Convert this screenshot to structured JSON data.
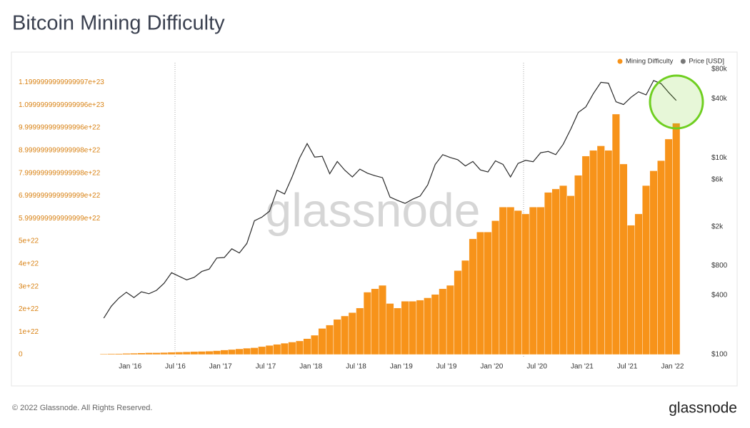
{
  "chart_data": {
    "type": "bar",
    "title": "Bitcoin Mining Difficulty",
    "watermark": "glassnode",
    "x": [
      "2015-09",
      "2015-10",
      "2015-11",
      "2015-12",
      "2016-01",
      "2016-02",
      "2016-03",
      "2016-04",
      "2016-05",
      "2016-06",
      "2016-07",
      "2016-08",
      "2016-09",
      "2016-10",
      "2016-11",
      "2016-12",
      "2017-01",
      "2017-02",
      "2017-03",
      "2017-04",
      "2017-05",
      "2017-06",
      "2017-07",
      "2017-08",
      "2017-09",
      "2017-10",
      "2017-11",
      "2017-12",
      "2018-01",
      "2018-02",
      "2018-03",
      "2018-04",
      "2018-05",
      "2018-06",
      "2018-07",
      "2018-08",
      "2018-09",
      "2018-10",
      "2018-11",
      "2018-12",
      "2019-01",
      "2019-02",
      "2019-03",
      "2019-04",
      "2019-05",
      "2019-06",
      "2019-07",
      "2019-08",
      "2019-09",
      "2019-10",
      "2019-11",
      "2019-12",
      "2020-01",
      "2020-02",
      "2020-03",
      "2020-04",
      "2020-05",
      "2020-06",
      "2020-07",
      "2020-08",
      "2020-09",
      "2020-10",
      "2020-11",
      "2020-12",
      "2021-01",
      "2021-02",
      "2021-03",
      "2021-04",
      "2021-05",
      "2021-06",
      "2021-07",
      "2021-08",
      "2021-09",
      "2021-10",
      "2021-11",
      "2021-12",
      "2022-01"
    ],
    "series": [
      {
        "name": "Mining Difficulty",
        "type": "bar",
        "color": "#f7931a",
        "values": [
          3e+20,
          3.5e+20,
          4e+20,
          5e+20,
          6e+20,
          7e+20,
          8e+20,
          8e+20,
          9e+20,
          1e+21,
          1.1e+21,
          1.2e+21,
          1.3e+21,
          1.4e+21,
          1.5e+21,
          1.7e+21,
          2e+21,
          2.2e+21,
          2.5e+21,
          2.8e+21,
          3e+21,
          3.5e+21,
          4e+21,
          4.5e+21,
          5e+21,
          5.5e+21,
          6e+21,
          7e+21,
          8.5e+21,
          1.15e+22,
          1.3e+22,
          1.55e+22,
          1.7e+22,
          1.85e+22,
          2.05e+22,
          2.75e+22,
          2.9e+22,
          3.05e+22,
          2.25e+22,
          2.05e+22,
          2.35e+22,
          2.35e+22,
          2.4e+22,
          2.5e+22,
          2.65e+22,
          2.9e+22,
          3.05e+22,
          3.7e+22,
          4.15e+22,
          5.1e+22,
          5.4e+22,
          5.4e+22,
          5.9e+22,
          6.5e+22,
          6.5e+22,
          6.35e+22,
          6.2e+22,
          6.5e+22,
          6.5e+22,
          7.15e+22,
          7.3e+22,
          7.45e+22,
          7e+22,
          7.9e+22,
          8.75e+22,
          9e+22,
          9.2e+22,
          9e+22,
          1.06e+23,
          8.4e+22,
          5.7e+22,
          6.2e+22,
          7.45e+22,
          8.1e+22,
          8.55e+22,
          9.5e+22,
          1.02e+23
        ]
      },
      {
        "name": "Price [USD]",
        "type": "line",
        "color": "#2b2b2b",
        "axis": "y2",
        "values": [
          235,
          310,
          375,
          430,
          380,
          435,
          415,
          450,
          530,
          680,
          625,
          575,
          610,
          700,
          740,
          960,
          970,
          1190,
          1080,
          1350,
          2300,
          2500,
          2870,
          4700,
          4300,
          6400,
          10000,
          14000,
          10200,
          10400,
          6900,
          9200,
          7500,
          6400,
          7700,
          7000,
          6600,
          6300,
          4000,
          3700,
          3450,
          3800,
          4100,
          5300,
          8600,
          10800,
          10100,
          9600,
          8300,
          9200,
          7550,
          7200,
          9350,
          8600,
          6400,
          8800,
          9450,
          9150,
          11300,
          11650,
          10800,
          13800,
          19700,
          29000,
          33100,
          45200,
          58800,
          57700,
          37300,
          35000,
          41500,
          47100,
          43800,
          61300,
          57000,
          46300,
          38500
        ]
      }
    ],
    "xlim": [
      "2015-09",
      "2022-02"
    ],
    "xticks": [
      {
        "value": "2016-01",
        "label": "Jan '16"
      },
      {
        "value": "2016-07",
        "label": "Jul '16"
      },
      {
        "value": "2017-01",
        "label": "Jan '17"
      },
      {
        "value": "2017-07",
        "label": "Jul '17"
      },
      {
        "value": "2018-01",
        "label": "Jan '18"
      },
      {
        "value": "2018-07",
        "label": "Jul '18"
      },
      {
        "value": "2019-01",
        "label": "Jan '19"
      },
      {
        "value": "2019-07",
        "label": "Jul '19"
      },
      {
        "value": "2020-01",
        "label": "Jan '20"
      },
      {
        "value": "2020-07",
        "label": "Jul '20"
      },
      {
        "value": "2021-01",
        "label": "Jan '21"
      },
      {
        "value": "2021-07",
        "label": "Jul '21"
      },
      {
        "value": "2022-01",
        "label": "Jan '22"
      }
    ],
    "ylim": [
      0,
      1.258e+23
    ],
    "yticks": [
      0,
      1e+22,
      2e+22,
      3e+22,
      4e+22,
      5e+22,
      {
        "value": 6e+22,
        "label": "5.999999999999999e+22"
      },
      {
        "value": 7e+22,
        "label": "6.999999999999999e+22"
      },
      {
        "value": 8e+22,
        "label": "7.999999999999998e+22"
      },
      {
        "value": 9e+22,
        "label": "8.999999999999998e+22"
      },
      {
        "value": 1e+23,
        "label": "9.999999999999996e+22"
      },
      {
        "value": 1.1e+23,
        "label": "1.0999999999999996e+23"
      },
      {
        "value": 1.2e+23,
        "label": "1.1999999999999997e+23"
      }
    ],
    "y2lim": [
      100,
      80000
    ],
    "y2scale": "log",
    "y2ticks": [
      {
        "value": 100,
        "label": "$100"
      },
      {
        "value": 400,
        "label": "$400"
      },
      {
        "value": 800,
        "label": "$800"
      },
      {
        "value": 2000,
        "label": "$2k"
      },
      {
        "value": 6000,
        "label": "$6k"
      },
      {
        "value": 10000,
        "label": "$10k"
      },
      {
        "value": 40000,
        "label": "$40k"
      },
      {
        "value": 80000,
        "label": "$80k"
      }
    ],
    "grid": false,
    "legend": "top-right"
  },
  "footer": {
    "copyright": "© 2022 Glassnode. All Rights Reserved.",
    "logo": "glassnode"
  }
}
